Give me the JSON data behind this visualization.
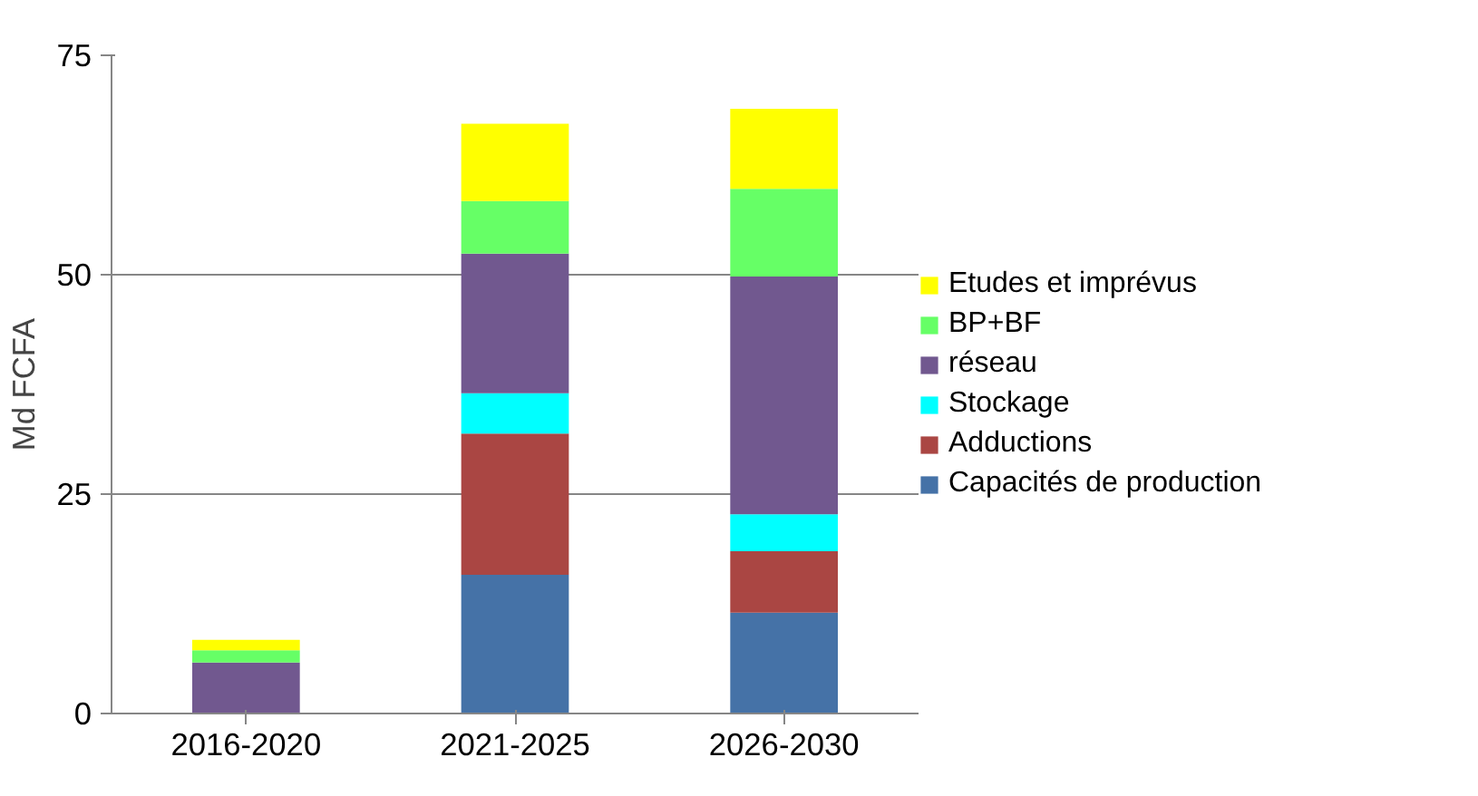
{
  "chart_data": {
    "type": "bar",
    "stacked": true,
    "ylabel": "Md FCFA",
    "categories": [
      "2016-2020",
      "2021-2025",
      "2026-2030"
    ],
    "series": [
      {
        "name": "Capacités de production",
        "color": "#4572a7",
        "values": [
          0,
          15.8,
          11.5
        ]
      },
      {
        "name": "Adductions",
        "color": "#aa4643",
        "values": [
          0,
          16.1,
          7.0
        ]
      },
      {
        "name": "Stockage",
        "color": "#00ffff",
        "values": [
          0,
          4.6,
          4.2
        ]
      },
      {
        "name": "réseau",
        "color": "#71588f",
        "values": [
          5.8,
          15.9,
          27.1
        ]
      },
      {
        "name": "BP+BF",
        "color": "#66ff66",
        "values": [
          1.4,
          6.0,
          10.0
        ]
      },
      {
        "name": "Etudes et imprévus",
        "color": "#ffff00",
        "values": [
          1.2,
          8.8,
          9.1
        ]
      }
    ],
    "ylim": [
      0,
      75
    ],
    "yticks": [
      0,
      25,
      50,
      75
    ],
    "grid": "y",
    "legend": "right"
  }
}
